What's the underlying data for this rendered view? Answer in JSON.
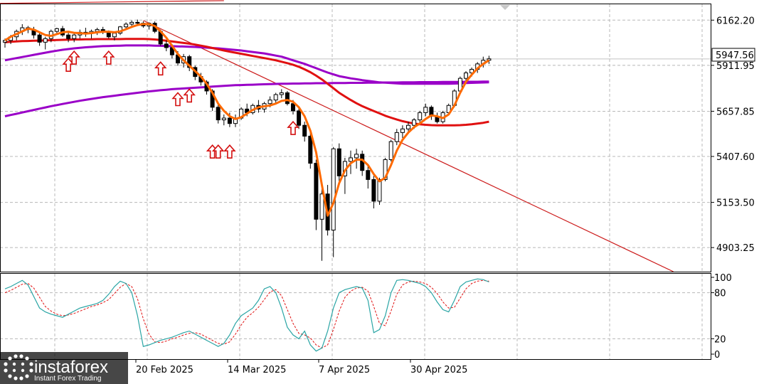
{
  "chart_data": [
    {
      "type": "candlestick",
      "price_ticks": [
        "6162.20",
        "5911.95",
        "5657.85",
        "5407.60",
        "5153.50",
        "4903.25"
      ],
      "current_price": "5947.56",
      "date_labels": [
        "20 Feb 2025",
        "14 Mar 2025",
        "7 Apr 2025",
        "30 Apr 2025"
      ],
      "ylim": [
        4770,
        6250
      ],
      "grid": true,
      "candles": [
        [
          6040,
          6060,
          6010,
          6050
        ],
        [
          6050,
          6080,
          6030,
          6070
        ],
        [
          6070,
          6110,
          6050,
          6100
        ],
        [
          6100,
          6140,
          6080,
          6120
        ],
        [
          6120,
          6130,
          6090,
          6110
        ],
        [
          6110,
          6125,
          6060,
          6080
        ],
        [
          6080,
          6100,
          6020,
          6040
        ],
        [
          6040,
          6070,
          6000,
          6060
        ],
        [
          6060,
          6110,
          6040,
          6100
        ],
        [
          6100,
          6120,
          6080,
          6115
        ],
        [
          6115,
          6130,
          6070,
          6080
        ],
        [
          6080,
          6100,
          6040,
          6060
        ],
        [
          6060,
          6090,
          6040,
          6080
        ],
        [
          6080,
          6110,
          6060,
          6095
        ],
        [
          6095,
          6120,
          6070,
          6090
        ],
        [
          6090,
          6110,
          6060,
          6100
        ],
        [
          6100,
          6120,
          6080,
          6110
        ],
        [
          6110,
          6125,
          6085,
          6095
        ],
        [
          6095,
          6105,
          6060,
          6070
        ],
        [
          6070,
          6100,
          6050,
          6090
        ],
        [
          6090,
          6130,
          6080,
          6125
        ],
        [
          6125,
          6150,
          6110,
          6140
        ],
        [
          6140,
          6160,
          6120,
          6150
        ],
        [
          6150,
          6165,
          6130,
          6145
        ],
        [
          6145,
          6155,
          6120,
          6130
        ],
        [
          6130,
          6150,
          6110,
          6145
        ],
        [
          6145,
          6155,
          6090,
          6100
        ],
        [
          6100,
          6110,
          6020,
          6030
        ],
        [
          6030,
          6050,
          5990,
          6010
        ],
        [
          6010,
          6030,
          5950,
          5970
        ],
        [
          5970,
          5990,
          5910,
          5925
        ],
        [
          5925,
          5975,
          5900,
          5960
        ],
        [
          5960,
          5970,
          5880,
          5900
        ],
        [
          5900,
          5910,
          5830,
          5850
        ],
        [
          5850,
          5870,
          5800,
          5820
        ],
        [
          5820,
          5830,
          5750,
          5770
        ],
        [
          5770,
          5780,
          5660,
          5680
        ],
        [
          5680,
          5700,
          5590,
          5610
        ],
        [
          5610,
          5640,
          5580,
          5620
        ],
        [
          5620,
          5650,
          5570,
          5590
        ],
        [
          5590,
          5640,
          5570,
          5620
        ],
        [
          5620,
          5680,
          5610,
          5670
        ],
        [
          5670,
          5700,
          5630,
          5650
        ],
        [
          5650,
          5700,
          5640,
          5690
        ],
        [
          5690,
          5720,
          5650,
          5670
        ],
        [
          5670,
          5710,
          5650,
          5700
        ],
        [
          5700,
          5740,
          5680,
          5720
        ],
        [
          5720,
          5760,
          5700,
          5750
        ],
        [
          5750,
          5780,
          5730,
          5760
        ],
        [
          5760,
          5770,
          5690,
          5700
        ],
        [
          5700,
          5720,
          5640,
          5660
        ],
        [
          5660,
          5680,
          5560,
          5580
        ],
        [
          5580,
          5600,
          5490,
          5520
        ],
        [
          5520,
          5540,
          5340,
          5370
        ],
        [
          5370,
          5390,
          5000,
          5060
        ],
        [
          5060,
          5250,
          4830,
          5200
        ],
        [
          5200,
          5250,
          4970,
          5000
        ],
        [
          5000,
          5460,
          4850,
          5450
        ],
        [
          5450,
          5480,
          5250,
          5300
        ],
        [
          5300,
          5400,
          5200,
          5380
        ],
        [
          5380,
          5440,
          5310,
          5400
        ],
        [
          5400,
          5450,
          5340,
          5420
        ],
        [
          5420,
          5440,
          5300,
          5330
        ],
        [
          5330,
          5360,
          5230,
          5280
        ],
        [
          5280,
          5300,
          5120,
          5160
        ],
        [
          5160,
          5290,
          5140,
          5280
        ],
        [
          5280,
          5400,
          5270,
          5390
        ],
        [
          5390,
          5500,
          5380,
          5490
        ],
        [
          5490,
          5560,
          5470,
          5540
        ],
        [
          5540,
          5580,
          5510,
          5560
        ],
        [
          5560,
          5600,
          5540,
          5580
        ],
        [
          5580,
          5620,
          5560,
          5610
        ],
        [
          5610,
          5660,
          5590,
          5650
        ],
        [
          5650,
          5700,
          5630,
          5680
        ],
        [
          5680,
          5690,
          5610,
          5630
        ],
        [
          5630,
          5650,
          5590,
          5600
        ],
        [
          5600,
          5660,
          5590,
          5650
        ],
        [
          5650,
          5700,
          5640,
          5690
        ],
        [
          5690,
          5780,
          5680,
          5770
        ],
        [
          5770,
          5850,
          5760,
          5840
        ],
        [
          5840,
          5880,
          5820,
          5870
        ],
        [
          5870,
          5900,
          5850,
          5890
        ],
        [
          5890,
          5930,
          5870,
          5920
        ],
        [
          5920,
          5960,
          5900,
          5940
        ],
        [
          5940,
          5965,
          5920,
          5948
        ]
      ],
      "series": [
        {
          "color": "#ff6a00",
          "values": [
            6050,
            6070,
            6085,
            6100,
            6115,
            6110,
            6095,
            6080,
            6075,
            6085,
            6095,
            6098,
            6092,
            6090,
            6088,
            6090,
            6095,
            6098,
            6098,
            6095,
            6100,
            6112,
            6125,
            6135,
            6140,
            6140,
            6130,
            6100,
            6065,
            6020,
            5975,
            5940,
            5910,
            5880,
            5850,
            5810,
            5760,
            5700,
            5660,
            5630,
            5615,
            5625,
            5645,
            5665,
            5680,
            5685,
            5690,
            5700,
            5715,
            5720,
            5710,
            5680,
            5630,
            5550,
            5430,
            5250,
            5080,
            5150,
            5260,
            5330,
            5370,
            5390,
            5390,
            5360,
            5310,
            5270,
            5290,
            5360,
            5440,
            5500,
            5540,
            5570,
            5590,
            5615,
            5635,
            5630,
            5620,
            5640,
            5690,
            5760,
            5820,
            5860,
            5895,
            5920,
            5940
          ]
        },
        {
          "color": "#e01010",
          "values": [
            6040,
            6042,
            6044,
            6046,
            6047,
            6048,
            6049,
            6050,
            6051,
            6052,
            6053,
            6054,
            6055,
            6055,
            6056,
            6056,
            6057,
            6057,
            6057,
            6057,
            6057,
            6058,
            6058,
            6058,
            6058,
            6057,
            6055,
            6052,
            6048,
            6044,
            6040,
            6036,
            6032,
            6027,
            6021,
            6015,
            6008,
            6001,
            5994,
            5988,
            5982,
            5976,
            5970,
            5964,
            5958,
            5952,
            5946,
            5940,
            5932,
            5924,
            5915,
            5904,
            5890,
            5874,
            5855,
            5834,
            5810,
            5785,
            5760,
            5740,
            5720,
            5702,
            5686,
            5672,
            5659,
            5646,
            5633,
            5622,
            5612,
            5603,
            5596,
            5590,
            5586,
            5583,
            5581,
            5580,
            5580,
            5580,
            5580,
            5581,
            5583,
            5586,
            5590,
            5594,
            5600
          ]
        },
        {
          "color": "#9a00c8",
          "values": [
            5940,
            5946,
            5952,
            5958,
            5964,
            5970,
            5976,
            5982,
            5988,
            5993,
            5998,
            6002,
            6006,
            6009,
            6012,
            6014,
            6016,
            6018,
            6019,
            6020,
            6021,
            6022,
            6022,
            6022,
            6022,
            6022,
            6021,
            6020,
            6019,
            6018,
            6017,
            6016,
            6015,
            6014,
            6012,
            6010,
            6008,
            6006,
            6003,
            6000,
            5997,
            5994,
            5990,
            5986,
            5982,
            5978,
            5972,
            5966,
            5960,
            5950,
            5940,
            5930,
            5920,
            5908,
            5896,
            5884,
            5872,
            5862,
            5852,
            5846,
            5840,
            5835,
            5830,
            5826,
            5822,
            5818,
            5816,
            5814,
            5812,
            5810,
            5810,
            5810,
            5810,
            5810,
            5810,
            5810,
            5810,
            5810,
            5811,
            5812,
            5814,
            5815,
            5816,
            5817,
            5818
          ]
        },
        {
          "color": "#9a00c8",
          "values": [
            5630,
            5637,
            5644,
            5651,
            5658,
            5665,
            5672,
            5679,
            5686,
            5692,
            5698,
            5704,
            5710,
            5716,
            5721,
            5726,
            5731,
            5736,
            5740,
            5744,
            5748,
            5752,
            5756,
            5760,
            5764,
            5768,
            5771,
            5774,
            5777,
            5780,
            5782,
            5784,
            5786,
            5788,
            5790,
            5792,
            5794,
            5796,
            5798,
            5800,
            5802,
            5803,
            5804,
            5805,
            5806,
            5807,
            5808,
            5809,
            5810,
            5810,
            5811,
            5811,
            5812,
            5812,
            5813,
            5813,
            5813,
            5814,
            5814,
            5814,
            5815,
            5815,
            5815,
            5816,
            5816,
            5816,
            5817,
            5817,
            5817,
            5818,
            5818,
            5818,
            5819,
            5819,
            5819,
            5819,
            5820,
            5820,
            5820,
            5820,
            5821,
            5821,
            5821,
            5822,
            5822
          ]
        }
      ],
      "trend_lines": [
        {
          "color": "#cc1a1a",
          "from": [
            -1,
            6255
          ],
          "to": [
            38,
            6270
          ]
        },
        {
          "color": "#cc1a1a",
          "from": [
            24,
            6160
          ],
          "to": [
            116,
            4770
          ]
        }
      ],
      "arrows": [
        {
          "i": 11,
          "value": 5950
        },
        {
          "i": 12,
          "value": 5990
        },
        {
          "i": 18,
          "value": 5990
        },
        {
          "i": 27,
          "value": 5930
        },
        {
          "i": 30,
          "value": 5760
        },
        {
          "i": 32,
          "value": 5780
        },
        {
          "i": 36,
          "value": 5470
        },
        {
          "i": 37,
          "value": 5470
        },
        {
          "i": 39,
          "value": 5470
        },
        {
          "i": 50,
          "value": 5600
        }
      ],
      "oscillator": {
        "levels": [
          "100",
          "80",
          "20",
          "0"
        ],
        "main_color": "#2aa5a5",
        "signal_color": "#e01010",
        "main": [
          85,
          88,
          92,
          96,
          90,
          75,
          60,
          55,
          52,
          50,
          48,
          52,
          56,
          60,
          62,
          64,
          66,
          70,
          78,
          88,
          95,
          92,
          80,
          50,
          10,
          12,
          15,
          18,
          20,
          22,
          25,
          28,
          30,
          26,
          22,
          18,
          14,
          10,
          14,
          25,
          40,
          50,
          55,
          60,
          70,
          85,
          88,
          80,
          60,
          35,
          25,
          20,
          30,
          12,
          4,
          8,
          30,
          60,
          80,
          84,
          86,
          88,
          86,
          70,
          28,
          32,
          50,
          80,
          96,
          97,
          96,
          94,
          92,
          88,
          80,
          68,
          58,
          55,
          70,
          88,
          94,
          96,
          98,
          97,
          94
        ],
        "signal": [
          80,
          83,
          87,
          91,
          92,
          86,
          74,
          62,
          56,
          52,
          50,
          51,
          53,
          56,
          59,
          62,
          64,
          67,
          71,
          79,
          87,
          92,
          88,
          72,
          46,
          26,
          16,
          15,
          17,
          20,
          22,
          25,
          27,
          28,
          26,
          22,
          18,
          14,
          13,
          16,
          26,
          38,
          48,
          54,
          61,
          71,
          81,
          84,
          76,
          58,
          40,
          27,
          25,
          21,
          12,
          8,
          12,
          32,
          56,
          74,
          82,
          86,
          87,
          82,
          62,
          40,
          37,
          56,
          78,
          90,
          94,
          95,
          94,
          92,
          87,
          79,
          68,
          60,
          61,
          73,
          85,
          92,
          95,
          96,
          95
        ]
      }
    }
  ],
  "watermark": {
    "brand": "instaforex",
    "tagline": "Instant Forex Trading"
  }
}
